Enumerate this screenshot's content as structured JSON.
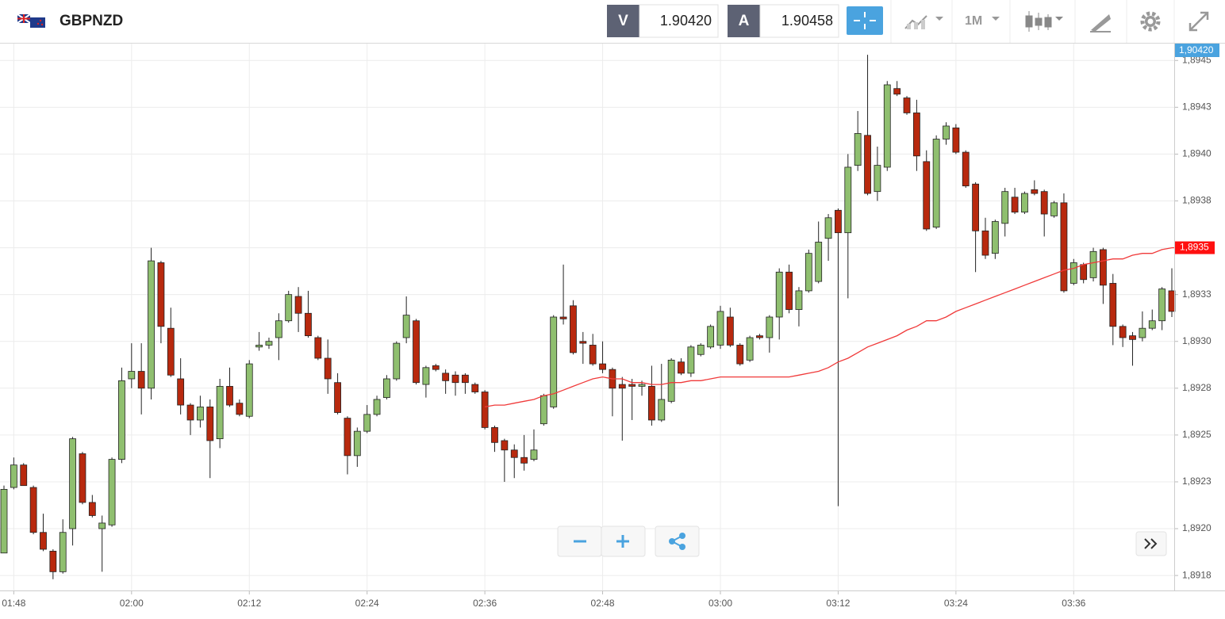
{
  "header": {
    "symbol": "GBPNZD",
    "bid_label": "V",
    "bid": "1.90420",
    "ask_label": "A",
    "ask": "1.90458",
    "timeframe": "1M"
  },
  "chart_data": {
    "type": "candlestick",
    "categories": [
      null,
      "01:48",
      null,
      null,
      null,
      null,
      null,
      null,
      null,
      null,
      null,
      null,
      null,
      "02:00",
      null,
      null,
      null,
      null,
      null,
      null,
      null,
      null,
      null,
      null,
      null,
      "02:12",
      null,
      null,
      null,
      null,
      null,
      null,
      null,
      null,
      null,
      null,
      null,
      "02:24",
      null,
      null,
      null,
      null,
      null,
      null,
      null,
      null,
      null,
      null,
      null,
      "02:36",
      null,
      null,
      null,
      null,
      null,
      null,
      null,
      null,
      null,
      null,
      null,
      "02:48",
      null,
      null,
      null,
      null,
      null,
      null,
      null,
      null,
      null,
      null,
      null,
      "03:00",
      null,
      null,
      null,
      null,
      null,
      null,
      null,
      null,
      null,
      null,
      null,
      "03:12",
      null,
      null,
      null,
      null,
      null,
      null,
      null,
      null,
      null,
      null,
      null,
      "03:24",
      null,
      null,
      null,
      null,
      null,
      null,
      null,
      null,
      null,
      null,
      null,
      "03:36",
      null,
      null,
      null,
      null,
      null,
      null,
      null,
      null,
      null,
      null
    ],
    "open": [
      1.89187,
      1.89222,
      1.89234,
      1.89222,
      1.89198,
      1.89188,
      1.89177,
      1.892,
      1.8924,
      1.89214,
      1.892,
      1.89202,
      1.89237,
      1.8928,
      1.89284,
      1.89275,
      1.89342,
      1.89307,
      1.8928,
      1.89266,
      1.89258,
      1.89265,
      1.89248,
      1.89276,
      1.89267,
      1.8926,
      1.89297,
      1.89298,
      1.89302,
      1.89311,
      1.89324,
      1.89315,
      1.89302,
      1.89291,
      1.89278,
      1.89259,
      1.89239,
      1.89252,
      1.89261,
      1.8927,
      1.8928,
      1.89302,
      1.89311,
      1.89277,
      1.89287,
      1.89283,
      1.89282,
      1.89282,
      1.89277,
      1.89273,
      1.89254,
      1.89247,
      1.89242,
      1.89238,
      1.89237,
      1.89256,
      1.89265,
      1.89313,
      1.89319,
      1.893,
      1.89298,
      1.89288,
      1.89285,
      1.89277,
      1.89277,
      1.89276,
      1.89276,
      1.89258,
      1.89268,
      1.89289,
      1.89283,
      1.89293,
      1.89297,
      1.89298,
      1.89313,
      1.89298,
      1.8929,
      1.89303,
      1.89302,
      1.89313,
      1.89337,
      1.89317,
      1.89327,
      1.89332,
      1.89355,
      1.8937,
      1.89358,
      1.89394,
      1.8941,
      1.8938,
      1.89393,
      1.89435,
      1.8943,
      1.89422,
      1.89396,
      1.89361,
      1.89408,
      1.89414,
      1.89401,
      1.89384,
      1.89359,
      1.89347,
      1.89363,
      1.89377,
      1.89369,
      1.89381,
      1.8938,
      1.89367,
      1.89374,
      1.89331,
      1.89341,
      1.89334,
      1.89349,
      1.89331,
      1.89308,
      1.89303,
      1.89302,
      1.89307,
      1.89311,
      1.89327
    ],
    "close": [
      1.89221,
      1.89234,
      1.89223,
      1.89198,
      1.89189,
      1.89177,
      1.89198,
      1.89248,
      1.89214,
      1.89207,
      1.89203,
      1.89237,
      1.89279,
      1.89284,
      1.89275,
      1.89343,
      1.89308,
      1.89282,
      1.89266,
      1.89258,
      1.89265,
      1.89247,
      1.89276,
      1.89266,
      1.89261,
      1.89288,
      1.89298,
      1.893,
      1.89311,
      1.89325,
      1.89315,
      1.89303,
      1.89291,
      1.8928,
      1.89262,
      1.89239,
      1.89252,
      1.89261,
      1.89269,
      1.8928,
      1.89299,
      1.89314,
      1.89278,
      1.89286,
      1.89285,
      1.89279,
      1.89278,
      1.89278,
      1.89273,
      1.89254,
      1.89246,
      1.89242,
      1.89238,
      1.89235,
      1.89242,
      1.89271,
      1.89313,
      1.89312,
      1.89294,
      1.89299,
      1.89288,
      1.89285,
      1.89275,
      1.89275,
      1.89276,
      1.89277,
      1.89258,
      1.89269,
      1.8929,
      1.89283,
      1.89297,
      1.89298,
      1.89308,
      1.89316,
      1.89298,
      1.89288,
      1.89302,
      1.89302,
      1.89313,
      1.89337,
      1.89317,
      1.89327,
      1.89347,
      1.89353,
      1.89366,
      1.89358,
      1.89393,
      1.89411,
      1.89379,
      1.89394,
      1.89437,
      1.89432,
      1.89422,
      1.89399,
      1.8936,
      1.89408,
      1.89415,
      1.89401,
      1.89383,
      1.89359,
      1.89346,
      1.89364,
      1.8938,
      1.89369,
      1.89379,
      1.89379,
      1.89368,
      1.89374,
      1.89327,
      1.89342,
      1.89333,
      1.89348,
      1.8933,
      1.89308,
      1.89302,
      1.89301,
      1.89307,
      1.89311,
      1.89328,
      1.89316
    ],
    "high": [
      1.89223,
      1.89238,
      1.89235,
      1.89223,
      1.89208,
      1.89189,
      1.89205,
      1.89249,
      1.89241,
      1.89218,
      1.89207,
      1.89238,
      1.89286,
      1.89299,
      1.89299,
      1.8935,
      1.89343,
      1.89318,
      1.89291,
      1.89267,
      1.89271,
      1.89269,
      1.8928,
      1.89286,
      1.89269,
      1.8929,
      1.89305,
      1.89302,
      1.89315,
      1.89327,
      1.89329,
      1.89327,
      1.89303,
      1.89301,
      1.89283,
      1.8926,
      1.89254,
      1.89266,
      1.89271,
      1.89282,
      1.893,
      1.89324,
      1.89312,
      1.89287,
      1.89288,
      1.89285,
      1.89284,
      1.89283,
      1.89278,
      1.89274,
      1.89255,
      1.89248,
      1.89245,
      1.8925,
      1.89253,
      1.89272,
      1.89314,
      1.89341,
      1.89322,
      1.89305,
      1.89304,
      1.893,
      1.89286,
      1.89281,
      1.8928,
      1.89279,
      1.89287,
      1.89288,
      1.89291,
      1.89291,
      1.89298,
      1.89299,
      1.89309,
      1.89319,
      1.89318,
      1.89299,
      1.89303,
      1.89304,
      1.89314,
      1.89339,
      1.89341,
      1.89329,
      1.89349,
      1.89364,
      1.89368,
      1.89371,
      1.894,
      1.89423,
      1.89453,
      1.89404,
      1.89439,
      1.89439,
      1.89431,
      1.89429,
      1.89402,
      1.8941,
      1.89417,
      1.89416,
      1.89402,
      1.89385,
      1.89366,
      1.89365,
      1.89382,
      1.89382,
      1.8938,
      1.89386,
      1.89381,
      1.89375,
      1.89379,
      1.89344,
      1.89342,
      1.8935,
      1.8935,
      1.89336,
      1.89309,
      1.89305,
      1.89316,
      1.89317,
      1.89329,
      1.89339
    ],
    "low": [
      1.89187,
      1.89221,
      1.89223,
      1.89197,
      1.89188,
      1.89173,
      1.89176,
      1.89191,
      1.89213,
      1.89206,
      1.89177,
      1.89201,
      1.89235,
      1.89275,
      1.89261,
      1.89269,
      1.89299,
      1.89281,
      1.89261,
      1.8925,
      1.89254,
      1.89227,
      1.89243,
      1.89265,
      1.8926,
      1.89259,
      1.89295,
      1.89296,
      1.8929,
      1.8931,
      1.89305,
      1.89302,
      1.8929,
      1.89272,
      1.89261,
      1.89229,
      1.89233,
      1.89251,
      1.8926,
      1.89269,
      1.89279,
      1.89299,
      1.89277,
      1.8927,
      1.89284,
      1.89272,
      1.89271,
      1.89272,
      1.89272,
      1.89253,
      1.89241,
      1.89225,
      1.89227,
      1.89231,
      1.89236,
      1.89255,
      1.89264,
      1.89309,
      1.89293,
      1.89288,
      1.89287,
      1.89283,
      1.8926,
      1.89247,
      1.89258,
      1.89271,
      1.89255,
      1.89257,
      1.89267,
      1.89282,
      1.89281,
      1.89292,
      1.89296,
      1.89296,
      1.89297,
      1.89287,
      1.89289,
      1.89301,
      1.89294,
      1.89301,
      1.89315,
      1.89308,
      1.89326,
      1.89331,
      1.89343,
      1.89212,
      1.89323,
      1.89391,
      1.89378,
      1.89375,
      1.89391,
      1.89431,
      1.89421,
      1.89391,
      1.89359,
      1.8936,
      1.89405,
      1.894,
      1.89382,
      1.89337,
      1.89344,
      1.89344,
      1.89356,
      1.89368,
      1.89368,
      1.89378,
      1.89356,
      1.89366,
      1.89326,
      1.8933,
      1.89331,
      1.89332,
      1.8932,
      1.89298,
      1.89297,
      1.89287,
      1.893,
      1.89306,
      1.89306,
      1.89313
    ],
    "up_color": "#8fbf6f",
    "down_color": "#b8290e",
    "moving_average": {
      "color": "#f03a3a",
      "values": [
        null,
        null,
        null,
        null,
        null,
        null,
        null,
        null,
        null,
        null,
        null,
        null,
        null,
        null,
        null,
        null,
        null,
        null,
        null,
        null,
        null,
        null,
        null,
        null,
        null,
        null,
        null,
        null,
        null,
        null,
        null,
        null,
        null,
        null,
        null,
        null,
        null,
        null,
        null,
        null,
        null,
        null,
        null,
        null,
        null,
        null,
        null,
        null,
        null,
        1.89265,
        1.89266,
        1.89266,
        1.89267,
        1.89268,
        1.89269,
        1.89271,
        1.89272,
        1.89274,
        1.89276,
        1.89278,
        1.8928,
        1.89281,
        1.8928,
        1.8928,
        1.89278,
        1.89278,
        1.89277,
        1.89277,
        1.89278,
        1.89278,
        1.89279,
        1.89279,
        1.8928,
        1.89281,
        1.89281,
        1.89281,
        1.89281,
        1.89281,
        1.89281,
        1.89281,
        1.89281,
        1.89282,
        1.89283,
        1.89284,
        1.89286,
        1.89289,
        1.89291,
        1.89294,
        1.89297,
        1.89299,
        1.89301,
        1.89303,
        1.89306,
        1.89308,
        1.89311,
        1.89311,
        1.89313,
        1.89316,
        1.89318,
        1.8932,
        1.89322,
        1.89324,
        1.89326,
        1.89328,
        1.8933,
        1.89332,
        1.89334,
        1.89336,
        1.89338,
        1.89339,
        1.89341,
        1.89342,
        1.89343,
        1.89344,
        1.89344,
        1.89346,
        1.89347,
        1.89347,
        1.89349,
        1.8935
      ]
    },
    "ylim": [
      1.89167,
      1.89459
    ],
    "yticks": [
      {
        "value": 1.89175,
        "label": "1,8918"
      },
      {
        "value": 1.892,
        "label": "1,8920"
      },
      {
        "value": 1.89225,
        "label": "1,8923"
      },
      {
        "value": 1.8925,
        "label": "1,8925"
      },
      {
        "value": 1.89275,
        "label": "1,8928"
      },
      {
        "value": 1.893,
        "label": "1,8930"
      },
      {
        "value": 1.89325,
        "label": "1,8933"
      },
      {
        "value": 1.8935,
        "label": "1,8935"
      },
      {
        "value": 1.89375,
        "label": "1,8938"
      },
      {
        "value": 1.894,
        "label": "1,8940"
      },
      {
        "value": 1.89425,
        "label": "1,8943"
      },
      {
        "value": 1.8945,
        "label": "1,8945"
      }
    ],
    "grid": true,
    "price_marker": {
      "value": 1.8935,
      "label": "1,8935",
      "color": "#ff1010"
    },
    "bid_marker": {
      "label": "1,90420",
      "color": "#4aa3df"
    }
  }
}
